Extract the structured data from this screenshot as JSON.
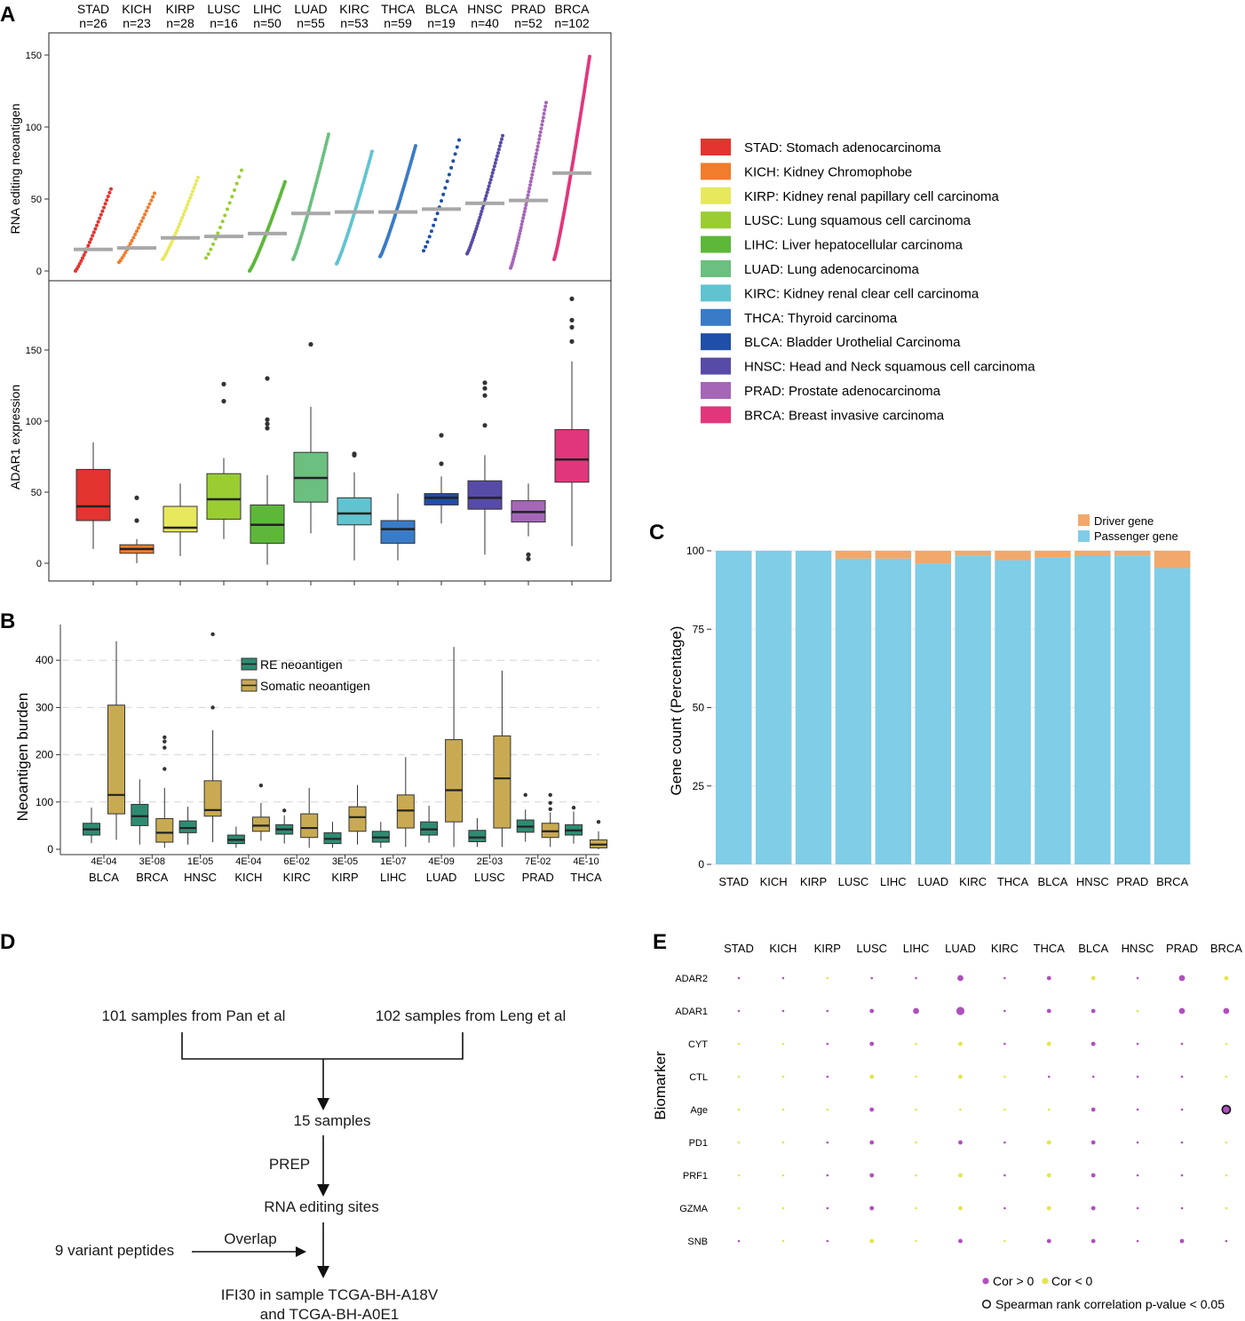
{
  "panels": {
    "a": "A",
    "b": "B",
    "c": "C",
    "d": "D",
    "e": "E"
  },
  "colors": {
    "STAD": "#e3342f",
    "KICH": "#f07c2c",
    "KIRP": "#e8e85c",
    "LUSC": "#9acd32",
    "LIHC": "#5db83a",
    "LUAD": "#6bbf7f",
    "KIRC": "#62c3d0",
    "THCA": "#3a7bc8",
    "BLCA": "#1f4fa6",
    "HNSC": "#574ba8",
    "PRAD": "#a566b8",
    "BRCA": "#e2367c",
    "re": "#2e8b72",
    "somatic": "#c8aa52",
    "driver": "#f2a86a",
    "passenger": "#7fcde6",
    "pos": "#b04fbf",
    "neg": "#e3e64a"
  },
  "chart_data": [
    {
      "id": "A-top",
      "type": "scatter",
      "title": "",
      "ylabel": "RNA editing neoantigen",
      "yticks": [
        0,
        50,
        100,
        150
      ],
      "ylim": [
        -5,
        165
      ],
      "categories": [
        "STAD",
        "KICH",
        "KIRP",
        "LUSC",
        "LIHC",
        "LUAD",
        "KIRC",
        "THCA",
        "BLCA",
        "HNSC",
        "PRAD",
        "BRCA"
      ],
      "counts": [
        "n=26",
        "n=23",
        "n=28",
        "n=16",
        "n=50",
        "n=55",
        "n=53",
        "n=59",
        "n=19",
        "n=40",
        "n=52",
        "n=102"
      ],
      "n": [
        26,
        23,
        28,
        16,
        50,
        55,
        53,
        59,
        19,
        40,
        52,
        102
      ],
      "min": [
        0,
        6,
        8,
        9,
        0,
        8,
        5,
        10,
        14,
        12,
        2,
        8
      ],
      "max": [
        57,
        54,
        65,
        70,
        62,
        95,
        83,
        87,
        91,
        94,
        117,
        149
      ],
      "median": [
        15,
        16,
        23,
        24,
        26,
        40,
        41,
        41,
        43,
        47,
        49,
        68
      ]
    },
    {
      "id": "A-bottom",
      "type": "box",
      "ylabel": "ADAR1 expression",
      "yticks": [
        0,
        50,
        100,
        150
      ],
      "ylim": [
        -5,
        193
      ],
      "categories": [
        "STAD",
        "KICH",
        "KIRP",
        "LUSC",
        "LIHC",
        "LUAD",
        "KIRC",
        "THCA",
        "BLCA",
        "HNSC",
        "PRAD",
        "BRCA"
      ],
      "boxes": [
        {
          "low": 10,
          "q1": 30,
          "med": 40,
          "q3": 66,
          "high": 85,
          "out": []
        },
        {
          "low": 0,
          "q1": 7,
          "med": 10,
          "q3": 13,
          "high": 17,
          "out": [
            30,
            46
          ]
        },
        {
          "low": 5,
          "q1": 22,
          "med": 25,
          "q3": 40,
          "high": 56,
          "out": []
        },
        {
          "low": 17,
          "q1": 31,
          "med": 45,
          "q3": 63,
          "high": 74,
          "out": [
            114,
            126
          ]
        },
        {
          "low": -1,
          "q1": 14,
          "med": 27,
          "q3": 41,
          "high": 62,
          "out": [
            95,
            98,
            101,
            130
          ]
        },
        {
          "low": 21,
          "q1": 43,
          "med": 60,
          "q3": 78,
          "high": 110,
          "out": [
            154
          ]
        },
        {
          "low": 2,
          "q1": 27,
          "med": 35,
          "q3": 46,
          "high": 64,
          "out": [
            76,
            77
          ]
        },
        {
          "low": 2,
          "q1": 14,
          "med": 24,
          "q3": 30,
          "high": 49,
          "out": []
        },
        {
          "low": 28,
          "q1": 41,
          "med": 46,
          "q3": 49,
          "high": 61,
          "out": [
            70,
            90
          ]
        },
        {
          "low": 6,
          "q1": 38,
          "med": 46,
          "q3": 58,
          "high": 76,
          "out": [
            97,
            118,
            123,
            127
          ]
        },
        {
          "low": 19,
          "q1": 29,
          "med": 36,
          "q3": 44,
          "high": 56,
          "out": [
            3,
            6
          ]
        },
        {
          "low": 12,
          "q1": 57,
          "med": 73,
          "q3": 94,
          "high": 142,
          "out": [
            156,
            166,
            171,
            186
          ]
        }
      ]
    },
    {
      "id": "B",
      "type": "box",
      "ylabel": "Neoantigen burden",
      "yticks": [
        0,
        100,
        200,
        300,
        400
      ],
      "ylim": [
        -20,
        480
      ],
      "categories": [
        "BLCA",
        "BRCA",
        "HNSC",
        "KICH",
        "KIRC",
        "KIRP",
        "LIHC",
        "LUAD",
        "LUSC",
        "PRAD",
        "THCA"
      ],
      "pvalues": [
        "4E-04",
        "3E-08",
        "1E-05",
        "4E-04",
        "6E-02",
        "3E-05",
        "1E-07",
        "4E-09",
        "2E-03",
        "7E-02",
        "4E-10"
      ],
      "legend": [
        "RE neoantigen",
        "Somatic neoantigen"
      ],
      "series": [
        {
          "name": "RE neoantigen",
          "boxes": [
            {
              "low": 13,
              "q1": 30,
              "med": 42,
              "q3": 55,
              "high": 88,
              "out": []
            },
            {
              "low": 10,
              "q1": 50,
              "med": 70,
              "q3": 95,
              "high": 148,
              "out": []
            },
            {
              "low": 10,
              "q1": 35,
              "med": 45,
              "q3": 60,
              "high": 90,
              "out": []
            },
            {
              "low": 3,
              "q1": 12,
              "med": 20,
              "q3": 30,
              "high": 48,
              "out": []
            },
            {
              "low": 12,
              "q1": 32,
              "med": 42,
              "q3": 52,
              "high": 72,
              "out": [
                82
              ]
            },
            {
              "low": 3,
              "q1": 12,
              "med": 22,
              "q3": 35,
              "high": 58,
              "out": []
            },
            {
              "low": 3,
              "q1": 15,
              "med": 25,
              "q3": 38,
              "high": 58,
              "out": []
            },
            {
              "low": 14,
              "q1": 30,
              "med": 42,
              "q3": 58,
              "high": 92,
              "out": []
            },
            {
              "low": 5,
              "q1": 16,
              "med": 25,
              "q3": 40,
              "high": 66,
              "out": []
            },
            {
              "low": 16,
              "q1": 36,
              "med": 48,
              "q3": 62,
              "high": 84,
              "out": [
                115
              ]
            },
            {
              "low": 12,
              "q1": 30,
              "med": 40,
              "q3": 52,
              "high": 80,
              "out": [
                88
              ]
            }
          ]
        },
        {
          "name": "Somatic neoantigen",
          "boxes": [
            {
              "low": 20,
              "q1": 75,
              "med": 115,
              "q3": 305,
              "high": 440,
              "out": []
            },
            {
              "low": 3,
              "q1": 15,
              "med": 35,
              "q3": 65,
              "high": 130,
              "out": [
                170,
                215,
                228,
                237
              ]
            },
            {
              "low": 15,
              "q1": 70,
              "med": 83,
              "q3": 145,
              "high": 252,
              "out": [
                300,
                455
              ]
            },
            {
              "low": 18,
              "q1": 38,
              "med": 50,
              "q3": 68,
              "high": 98,
              "out": [
                135
              ]
            },
            {
              "low": 3,
              "q1": 25,
              "med": 45,
              "q3": 75,
              "high": 130,
              "out": []
            },
            {
              "low": 10,
              "q1": 38,
              "med": 68,
              "q3": 90,
              "high": 136,
              "out": []
            },
            {
              "low": 5,
              "q1": 45,
              "med": 82,
              "q3": 115,
              "high": 195,
              "out": []
            },
            {
              "low": 5,
              "q1": 58,
              "med": 125,
              "q3": 232,
              "high": 428,
              "out": []
            },
            {
              "low": 5,
              "q1": 45,
              "med": 150,
              "q3": 240,
              "high": 378,
              "out": []
            },
            {
              "low": 5,
              "q1": 25,
              "med": 38,
              "q3": 55,
              "high": 78,
              "out": [
                85,
                98,
                115
              ]
            },
            {
              "low": 0,
              "q1": 3,
              "med": 10,
              "q3": 20,
              "high": 38,
              "out": [
                58
              ]
            }
          ]
        }
      ]
    },
    {
      "id": "C",
      "type": "bar",
      "ylabel": "Gene count (Percentage)",
      "yticks": [
        0,
        25,
        50,
        75,
        100
      ],
      "ylim": [
        0,
        100
      ],
      "categories": [
        "STAD",
        "KICH",
        "KIRP",
        "LUSC",
        "LIHC",
        "LUAD",
        "KIRC",
        "THCA",
        "BLCA",
        "HNSC",
        "PRAD",
        "BRCA"
      ],
      "legend": [
        "Driver gene",
        "Passenger gene"
      ],
      "series": [
        {
          "name": "Passenger gene",
          "values": [
            100,
            100,
            100,
            97.5,
            97.5,
            95.8,
            98.5,
            97,
            97.8,
            98.3,
            98.5,
            94.5
          ]
        },
        {
          "name": "Driver gene",
          "values": [
            0,
            0,
            0,
            2.5,
            2.5,
            4.2,
            1.5,
            3,
            2.2,
            1.7,
            1.5,
            5.5
          ]
        }
      ]
    },
    {
      "id": "E",
      "type": "heatmap",
      "ylabel": "Biomarker",
      "columns": [
        "STAD",
        "KICH",
        "KIRP",
        "LUSC",
        "LIHC",
        "LUAD",
        "KIRC",
        "THCA",
        "BLCA",
        "HNSC",
        "PRAD",
        "BRCA"
      ],
      "rows": [
        "ADAR2",
        "ADAR1",
        "CYT",
        "CTL",
        "Age",
        "PD1",
        "PRF1",
        "GZMA",
        "SNB"
      ],
      "signs": [
        [
          1,
          1,
          -1,
          1,
          1,
          1,
          1,
          1,
          -1,
          1,
          1,
          -1
        ],
        [
          1,
          1,
          1,
          1,
          1,
          1,
          1,
          1,
          1,
          -1,
          1,
          1
        ],
        [
          -1,
          -1,
          1,
          1,
          -1,
          -1,
          1,
          -1,
          1,
          1,
          1,
          -1
        ],
        [
          -1,
          -1,
          1,
          -1,
          -1,
          -1,
          -1,
          1,
          1,
          1,
          1,
          -1
        ],
        [
          -1,
          -1,
          -1,
          1,
          -1,
          -1,
          -1,
          -1,
          1,
          1,
          1,
          1
        ],
        [
          -1,
          -1,
          1,
          1,
          -1,
          1,
          1,
          -1,
          1,
          1,
          1,
          -1
        ],
        [
          -1,
          -1,
          1,
          1,
          -1,
          -1,
          1,
          -1,
          1,
          1,
          1,
          -1
        ],
        [
          -1,
          -1,
          1,
          1,
          -1,
          -1,
          1,
          -1,
          1,
          1,
          1,
          -1
        ],
        [
          1,
          -1,
          1,
          -1,
          -1,
          1,
          -1,
          1,
          1,
          1,
          1,
          1
        ]
      ],
      "sizes": [
        [
          1,
          1,
          1,
          1,
          1,
          3,
          1,
          2,
          2,
          1,
          3,
          2
        ],
        [
          1,
          1,
          1,
          2,
          3,
          4,
          1,
          2,
          2,
          1,
          3,
          3
        ],
        [
          1,
          1,
          1,
          2,
          1,
          2,
          1,
          2,
          2,
          1,
          1,
          1
        ],
        [
          1,
          1,
          1,
          2,
          1,
          2,
          1,
          1,
          1,
          1,
          1,
          1
        ],
        [
          1,
          1,
          1,
          2,
          1,
          1,
          1,
          1,
          2,
          1,
          1,
          4
        ],
        [
          1,
          1,
          1,
          2,
          1,
          2,
          1,
          2,
          2,
          1,
          1,
          1
        ],
        [
          1,
          1,
          1,
          2,
          1,
          2,
          1,
          2,
          2,
          1,
          1,
          1
        ],
        [
          1,
          1,
          1,
          2,
          1,
          2,
          1,
          2,
          2,
          1,
          1,
          1
        ],
        [
          1,
          1,
          1,
          2,
          1,
          2,
          1,
          2,
          2,
          1,
          2,
          1
        ]
      ],
      "significant": [
        [
          11,
          4
        ]
      ],
      "legend": [
        "Cor > 0",
        "Cor < 0"
      ],
      "note": "Spearman rank correlation p-value < 0.05"
    }
  ],
  "legendA": [
    {
      "code": "STAD",
      "label": "STAD: Stomach adenocarcinoma"
    },
    {
      "code": "KICH",
      "label": "KICH: Kidney Chromophobe"
    },
    {
      "code": "KIRP",
      "label": "KIRP: Kidney renal papillary cell carcinoma"
    },
    {
      "code": "LUSC",
      "label": "LUSC: Lung squamous cell carcinoma"
    },
    {
      "code": "LIHC",
      "label": "LIHC: Liver hepatocellular carcinoma"
    },
    {
      "code": "LUAD",
      "label": "LUAD: Lung adenocarcinoma"
    },
    {
      "code": "KIRC",
      "label": "KIRC: Kidney renal clear cell carcinoma"
    },
    {
      "code": "THCA",
      "label": "THCA: Thyroid carcinoma"
    },
    {
      "code": "BLCA",
      "label": "BLCA: Bladder Urothelial Carcinoma"
    },
    {
      "code": "HNSC",
      "label": "HNSC: Head and Neck squamous cell carcinoma"
    },
    {
      "code": "PRAD",
      "label": "PRAD: Prostate adenocarcinoma"
    },
    {
      "code": "BRCA",
      "label": "BRCA: Breast invasive carcinoma"
    }
  ],
  "flow": {
    "left_source": "101 samples from Pan et al",
    "right_source": "102 samples from Leng et al",
    "merged": "15 samples",
    "step_label": "PREP",
    "sites": "RNA editing sites",
    "peptides": "9 variant peptides",
    "overlap": "Overlap",
    "result_line1": "IFI30 in sample TCGA-BH-A18V",
    "result_line2": "and TCGA-BH-A0E1"
  }
}
